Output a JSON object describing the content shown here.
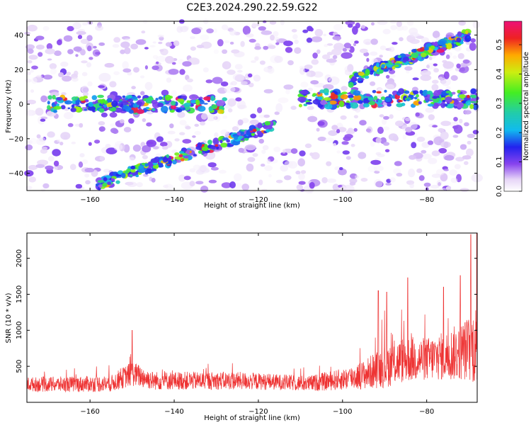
{
  "title": "C2E3.2024.290.22.59.G22",
  "chart_data": [
    {
      "type": "heatmap",
      "xlabel": "Height of straight line (km)",
      "ylabel": "Frequency (Hz)",
      "xlim": [
        -175,
        -68
      ],
      "ylim": [
        -50,
        48
      ],
      "xticks": [
        -160,
        -140,
        -120,
        -100,
        -80
      ],
      "yticks": [
        -40,
        -20,
        0,
        20,
        40
      ],
      "colorbar": {
        "label": "Normalized spectral amplitude",
        "range": [
          0,
          0.58
        ],
        "ticks": [
          0.0,
          0.1,
          0.2,
          0.3,
          0.4,
          0.5
        ]
      },
      "features": [
        {
          "name": "horizontal band",
          "x": [
            -170,
            -128
          ],
          "y_center": 0
        },
        {
          "name": "horizontal band",
          "x": [
            -110,
            -68
          ],
          "y_center": 3
        },
        {
          "name": "rising streak",
          "x": [
            -158,
            -116
          ],
          "y": [
            -46,
            -12
          ]
        },
        {
          "name": "rising streak",
          "x": [
            -98,
            -70
          ],
          "y": [
            14,
            40
          ]
        }
      ]
    },
    {
      "type": "line",
      "xlabel": "Height of straight line (km)",
      "ylabel": "SNR (10 * v/v)",
      "xlim": [
        -175,
        -68
      ],
      "ylim": [
        0,
        2350
      ],
      "xticks": [
        -160,
        -140,
        -120,
        -100,
        -80
      ],
      "yticks": [
        500,
        1000,
        1500,
        2000
      ],
      "line_color": "#ee3333",
      "envelope": {
        "x": [
          -175,
          -165,
          -155,
          -150,
          -145,
          -135,
          -125,
          -115,
          -108,
          -100,
          -95,
          -90,
          -85,
          -80,
          -75,
          -70,
          -68
        ],
        "base": [
          250,
          250,
          260,
          400,
          300,
          300,
          300,
          280,
          260,
          320,
          380,
          500,
          600,
          600,
          650,
          750,
          800
        ],
        "spread": [
          200,
          220,
          230,
          350,
          260,
          250,
          250,
          220,
          220,
          300,
          400,
          600,
          650,
          600,
          700,
          900,
          1200
        ]
      },
      "peaks": [
        {
          "x": -150,
          "y": 1000
        },
        {
          "x": -91.5,
          "y": 1550
        },
        {
          "x": -89.5,
          "y": 1530
        },
        {
          "x": -84.5,
          "y": 1730
        },
        {
          "x": -76,
          "y": 1600
        },
        {
          "x": -72,
          "y": 1760
        },
        {
          "x": -69.5,
          "y": 2330
        }
      ]
    }
  ]
}
